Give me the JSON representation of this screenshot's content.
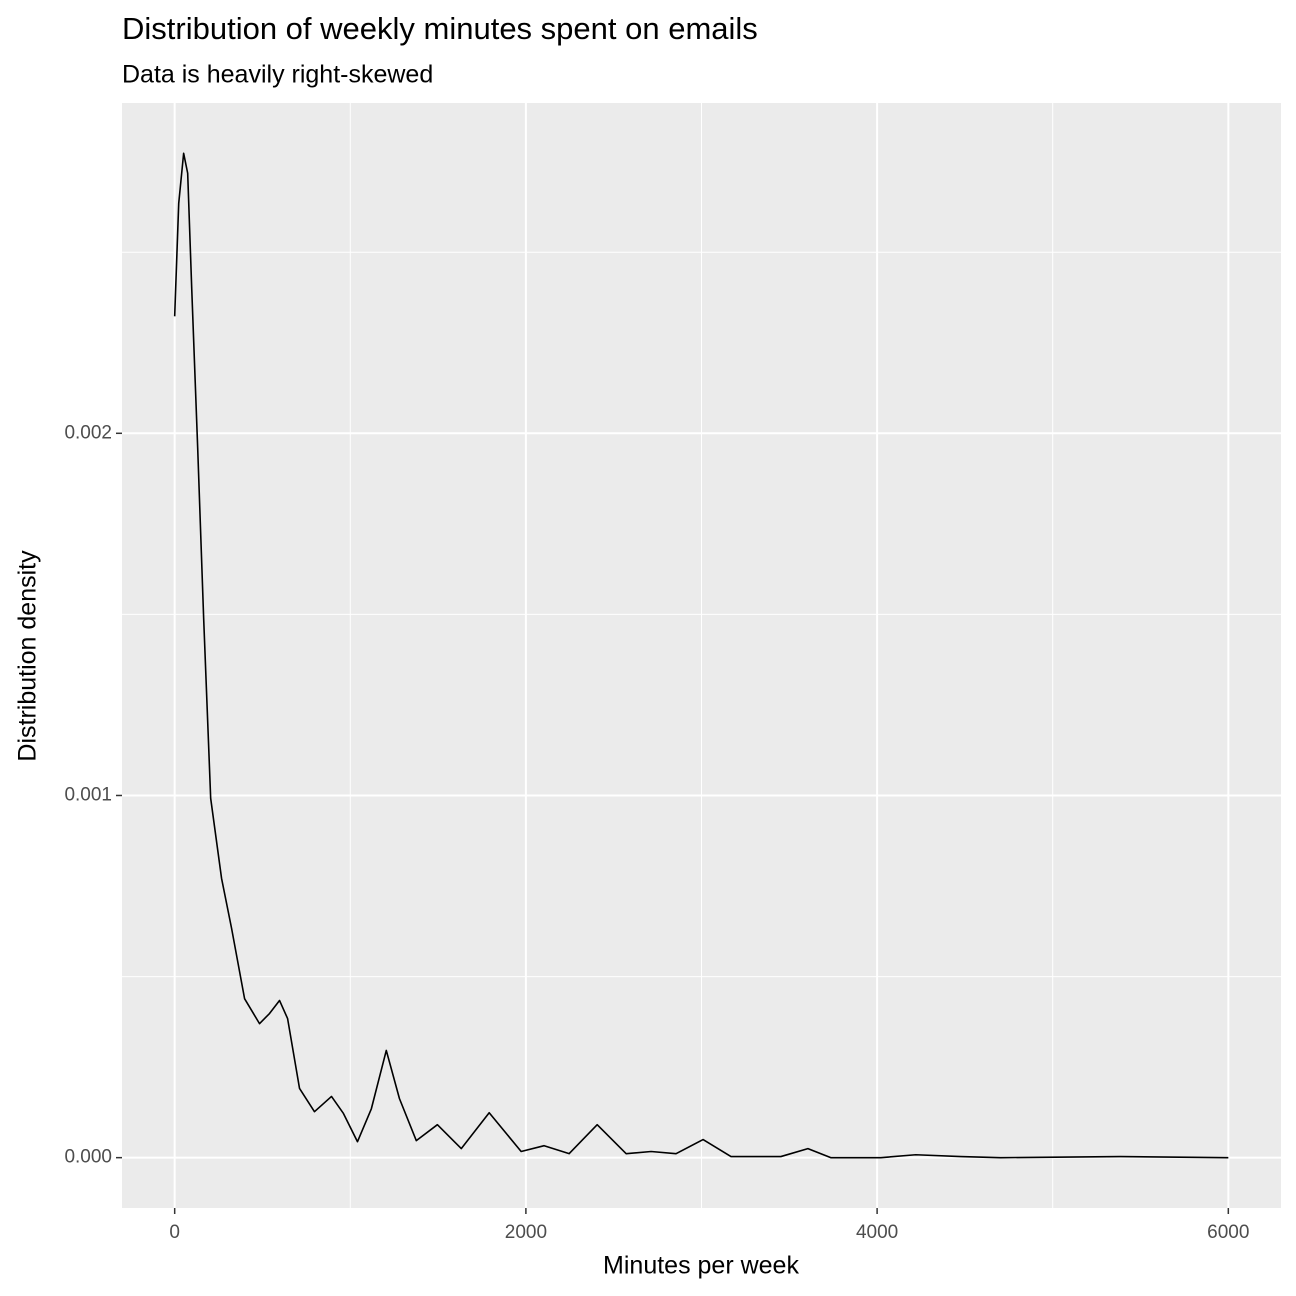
{
  "chart_data": {
    "type": "density",
    "title": "Distribution of weekly minutes spent on emails",
    "subtitle": "Data is heavily right-skewed",
    "x_label": "Minutes per week",
    "y_label": "Distribution density",
    "color": "#000000",
    "grid": true,
    "x": [
      0,
      23,
      51,
      74,
      97,
      131,
      165,
      205,
      267,
      324,
      398,
      483,
      540,
      597,
      643,
      711,
      796,
      893,
      961,
      1041,
      1120,
      1205,
      1280,
      1376,
      1496,
      1632,
      1791,
      1973,
      2104,
      2246,
      2406,
      2571,
      2713,
      2855,
      3009,
      3168,
      3452,
      3606,
      3736,
      4021,
      4220,
      4476,
      4703,
      5386,
      6000
    ],
    "values": [
      0.002323,
      0.002635,
      0.002773,
      0.002718,
      0.0024,
      0.001959,
      0.001489,
      0.000992,
      0.000771,
      0.000633,
      0.000439,
      0.00037,
      0.000398,
      0.000434,
      0.000384,
      0.000191,
      0.000127,
      0.000169,
      0.000122,
      4.4e-05,
      0.000135,
      0.000296,
      0.000163,
      4.7e-05,
      9.1e-05,
      2.5e-05,
      0.000124,
      1.7e-05,
      3.3e-05,
      1.1e-05,
      9.1e-05,
      1.1e-05,
      1.7e-05,
      1.1e-05,
      5e-05,
      3e-06,
      3e-06,
      2.5e-05,
      0,
      0,
      8e-06,
      3e-06,
      0,
      3e-06,
      0
    ],
    "xlim": [
      -300,
      6300
    ],
    "ylim": [
      -0.000139,
      0.002912
    ],
    "xticks": [
      0,
      2000,
      4000,
      6000
    ],
    "yticks": [
      {
        "value": 0,
        "label": "0.000"
      },
      0.001,
      0.002
    ],
    "minor_xticks": [
      1000,
      3000,
      5000
    ],
    "minor_yticks": [
      0.0005,
      0.0015,
      0.0025
    ]
  }
}
